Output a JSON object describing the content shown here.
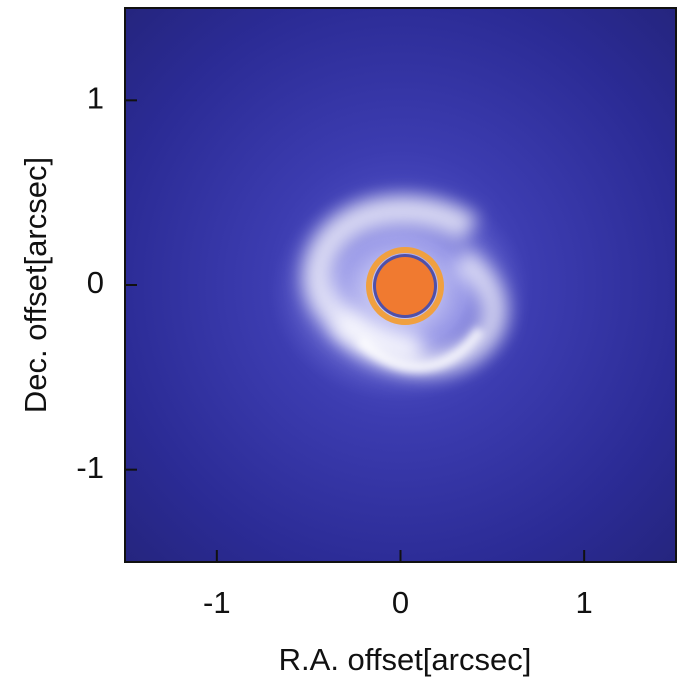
{
  "chart_data": {
    "type": "image",
    "xlabel": "R.A. offset[arcsec]",
    "ylabel": "Dec. offset[arcsec]",
    "xlim": [
      -1.5,
      1.5
    ],
    "ylim": [
      -1.5,
      1.5
    ],
    "xticks": [
      -1,
      0,
      1
    ],
    "yticks": [
      -1,
      0,
      1
    ]
  }
}
